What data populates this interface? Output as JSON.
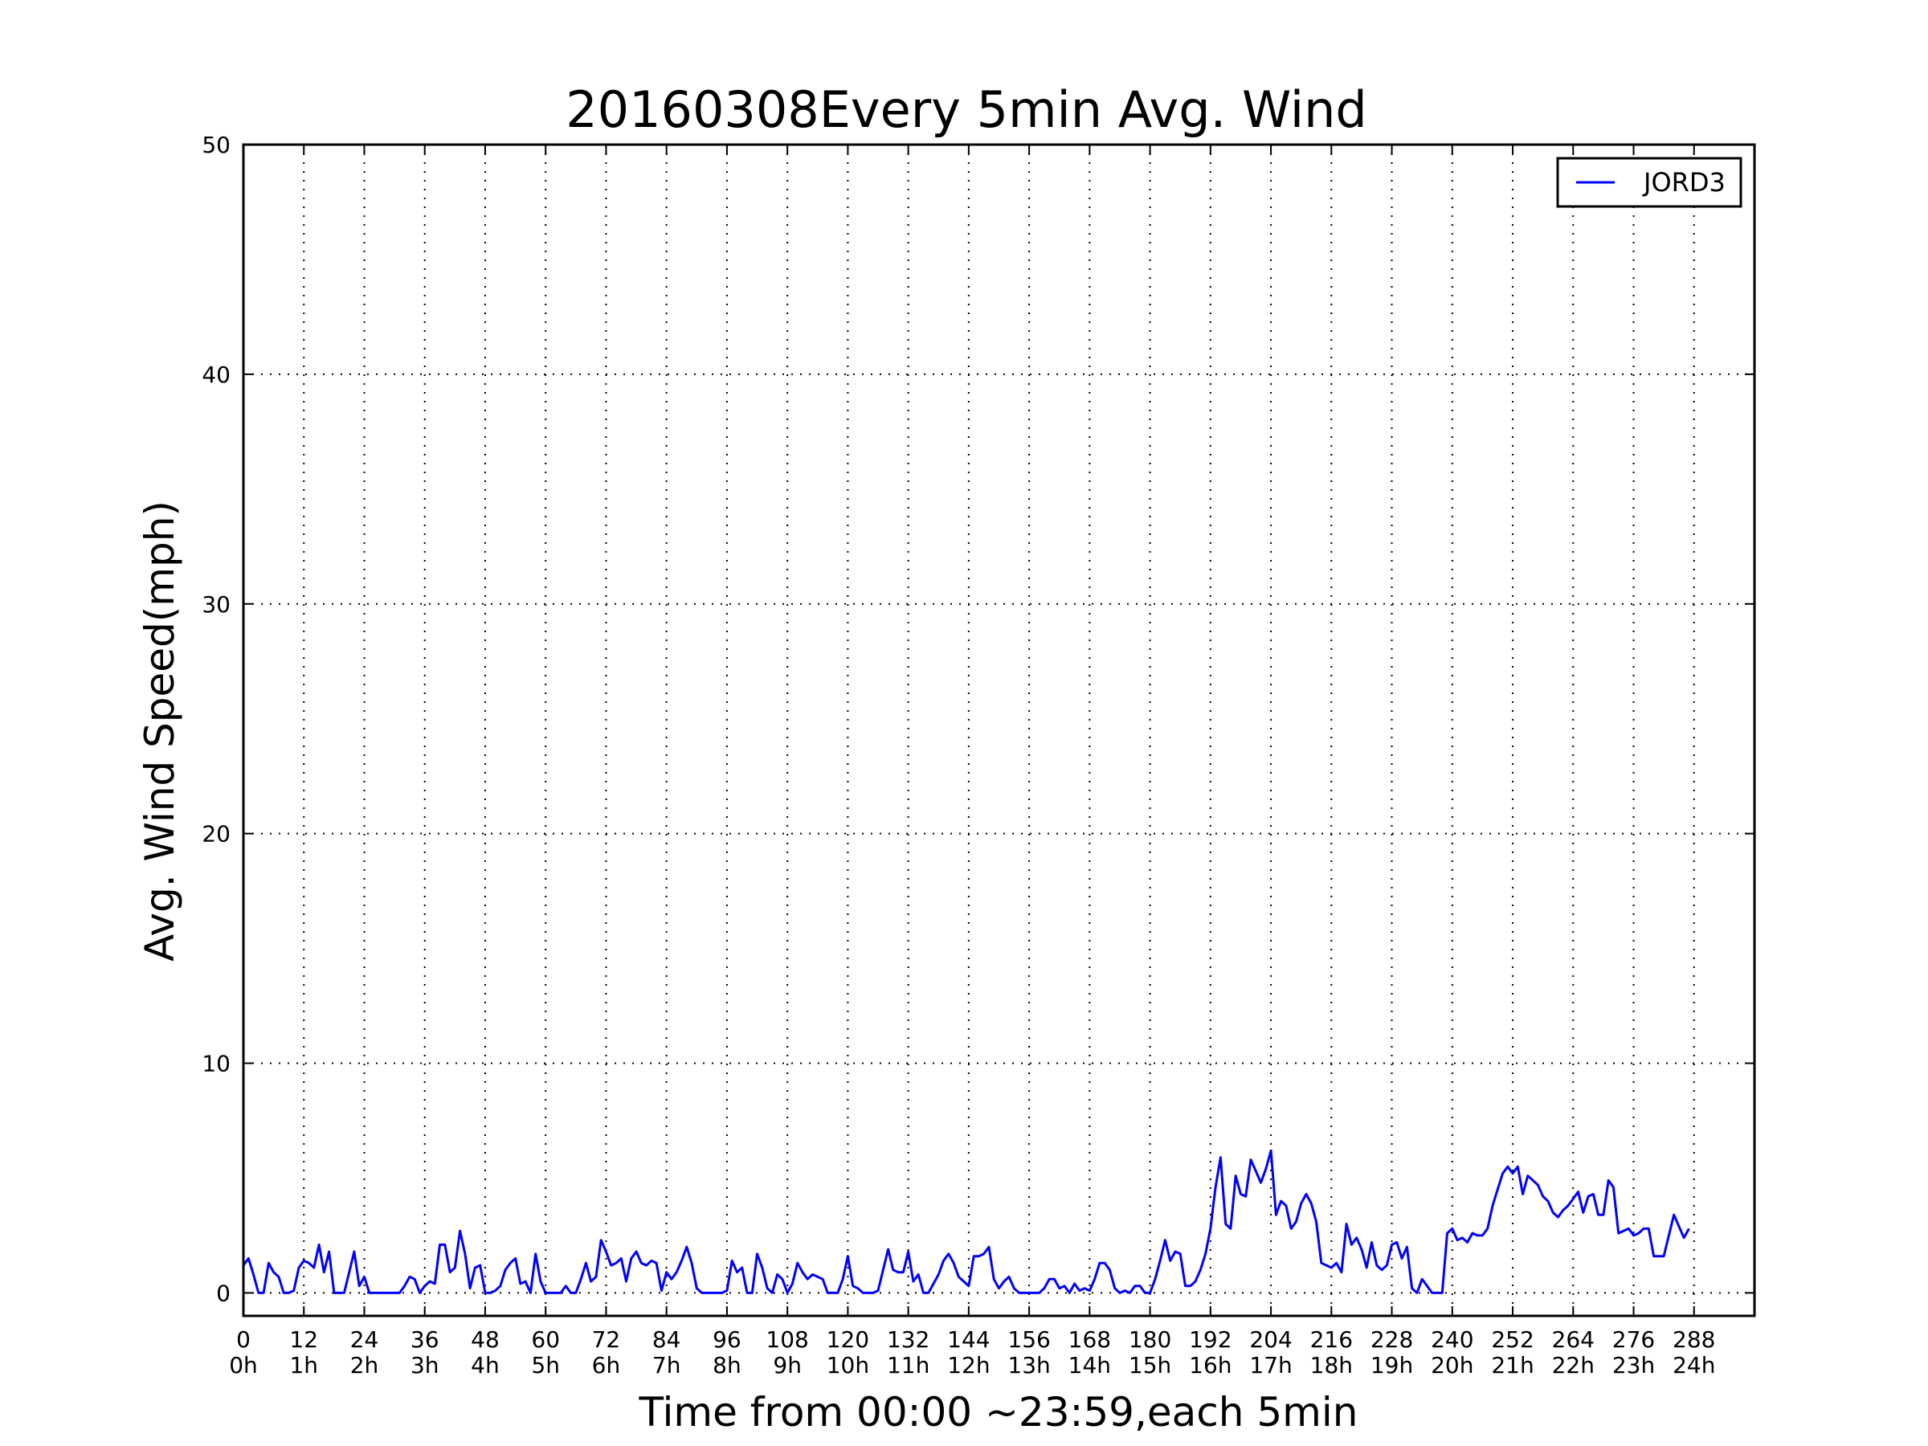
{
  "chart_data": {
    "type": "line",
    "title": "20160308Every 5min Avg. Wind",
    "xlabel": "Time from 00:00 ~23:59,each 5min",
    "ylabel": "Avg. Wind Speed(mph)",
    "xlim": [
      0,
      300
    ],
    "ylim": [
      -1,
      50
    ],
    "x_ticks": [
      {
        "value": 0,
        "label": "0",
        "sublabel": "0h"
      },
      {
        "value": 12,
        "label": "12",
        "sublabel": "1h"
      },
      {
        "value": 24,
        "label": "24",
        "sublabel": "2h"
      },
      {
        "value": 36,
        "label": "36",
        "sublabel": "3h"
      },
      {
        "value": 48,
        "label": "48",
        "sublabel": "4h"
      },
      {
        "value": 60,
        "label": "60",
        "sublabel": "5h"
      },
      {
        "value": 72,
        "label": "72",
        "sublabel": "6h"
      },
      {
        "value": 84,
        "label": "84",
        "sublabel": "7h"
      },
      {
        "value": 96,
        "label": "96",
        "sublabel": "8h"
      },
      {
        "value": 108,
        "label": "108",
        "sublabel": "9h"
      },
      {
        "value": 120,
        "label": "120",
        "sublabel": "10h"
      },
      {
        "value": 132,
        "label": "132",
        "sublabel": "11h"
      },
      {
        "value": 144,
        "label": "144",
        "sublabel": "12h"
      },
      {
        "value": 156,
        "label": "156",
        "sublabel": "13h"
      },
      {
        "value": 168,
        "label": "168",
        "sublabel": "14h"
      },
      {
        "value": 180,
        "label": "180",
        "sublabel": "15h"
      },
      {
        "value": 192,
        "label": "192",
        "sublabel": "16h"
      },
      {
        "value": 204,
        "label": "204",
        "sublabel": "17h"
      },
      {
        "value": 216,
        "label": "216",
        "sublabel": "18h"
      },
      {
        "value": 228,
        "label": "228",
        "sublabel": "19h"
      },
      {
        "value": 240,
        "label": "240",
        "sublabel": "20h"
      },
      {
        "value": 252,
        "label": "252",
        "sublabel": "21h"
      },
      {
        "value": 264,
        "label": "264",
        "sublabel": "22h"
      },
      {
        "value": 276,
        "label": "276",
        "sublabel": "23h"
      },
      {
        "value": 288,
        "label": "288",
        "sublabel": "24h"
      }
    ],
    "y_ticks": [
      {
        "value": 0,
        "label": "0"
      },
      {
        "value": 10,
        "label": "10"
      },
      {
        "value": 20,
        "label": "20"
      },
      {
        "value": 30,
        "label": "30"
      },
      {
        "value": 40,
        "label": "40"
      },
      {
        "value": 50,
        "label": "50"
      }
    ],
    "grid": true,
    "legend_position": "top-right",
    "series": [
      {
        "name": "JORD3",
        "color": "#0000ff",
        "points": [
          [
            0,
            1.2
          ],
          [
            1,
            1.5
          ],
          [
            2,
            0.8
          ],
          [
            3,
            0.0
          ],
          [
            4,
            0.0
          ],
          [
            5,
            1.3
          ],
          [
            6,
            0.9
          ],
          [
            7,
            0.7
          ],
          [
            8,
            0.0
          ],
          [
            9,
            0.0
          ],
          [
            10,
            0.1
          ],
          [
            11,
            1.1
          ],
          [
            12,
            1.4
          ],
          [
            13,
            1.3
          ],
          [
            14,
            1.1
          ],
          [
            15,
            2.1
          ],
          [
            16,
            0.9
          ],
          [
            17,
            1.8
          ],
          [
            18,
            0.0
          ],
          [
            19,
            0.0
          ],
          [
            20,
            0.0
          ],
          [
            21,
            0.9
          ],
          [
            22,
            1.8
          ],
          [
            23,
            0.3
          ],
          [
            24,
            0.7
          ],
          [
            25,
            0.0
          ],
          [
            26,
            0.0
          ],
          [
            27,
            0.0
          ],
          [
            28,
            0.0
          ],
          [
            29,
            0.0
          ],
          [
            30,
            0.0
          ],
          [
            31,
            0.0
          ],
          [
            32,
            0.3
          ],
          [
            33,
            0.7
          ],
          [
            34,
            0.6
          ],
          [
            35,
            0.0
          ],
          [
            36,
            0.3
          ],
          [
            37,
            0.5
          ],
          [
            38,
            0.4
          ],
          [
            39,
            2.1
          ],
          [
            40,
            2.1
          ],
          [
            41,
            0.9
          ],
          [
            42,
            1.1
          ],
          [
            43,
            2.7
          ],
          [
            44,
            1.7
          ],
          [
            45,
            0.2
          ],
          [
            46,
            1.1
          ],
          [
            47,
            1.2
          ],
          [
            48,
            0.0
          ],
          [
            49,
            0.0
          ],
          [
            50,
            0.1
          ],
          [
            51,
            0.3
          ],
          [
            52,
            1.0
          ],
          [
            53,
            1.3
          ],
          [
            54,
            1.5
          ],
          [
            55,
            0.4
          ],
          [
            56,
            0.5
          ],
          [
            57,
            0.0
          ],
          [
            58,
            1.7
          ],
          [
            59,
            0.5
          ],
          [
            60,
            0.0
          ],
          [
            61,
            0.0
          ],
          [
            62,
            0.0
          ],
          [
            63,
            0.0
          ],
          [
            64,
            0.3
          ],
          [
            65,
            0.0
          ],
          [
            66,
            0.0
          ],
          [
            67,
            0.6
          ],
          [
            68,
            1.3
          ],
          [
            69,
            0.5
          ],
          [
            70,
            0.7
          ],
          [
            71,
            2.3
          ],
          [
            72,
            1.8
          ],
          [
            73,
            1.2
          ],
          [
            74,
            1.3
          ],
          [
            75,
            1.5
          ],
          [
            76,
            0.5
          ],
          [
            77,
            1.5
          ],
          [
            78,
            1.8
          ],
          [
            79,
            1.3
          ],
          [
            80,
            1.2
          ],
          [
            81,
            1.4
          ],
          [
            82,
            1.3
          ],
          [
            83,
            0.1
          ],
          [
            84,
            0.9
          ],
          [
            85,
            0.6
          ],
          [
            86,
            0.9
          ],
          [
            87,
            1.4
          ],
          [
            88,
            2.0
          ],
          [
            89,
            1.3
          ],
          [
            90,
            0.2
          ],
          [
            91,
            0.0
          ],
          [
            92,
            0.0
          ],
          [
            93,
            0.0
          ],
          [
            94,
            0.0
          ],
          [
            95,
            0.0
          ],
          [
            96,
            0.1
          ],
          [
            97,
            1.4
          ],
          [
            98,
            0.9
          ],
          [
            99,
            1.1
          ],
          [
            100,
            0.0
          ],
          [
            101,
            0.0
          ],
          [
            102,
            1.7
          ],
          [
            103,
            1.1
          ],
          [
            104,
            0.2
          ],
          [
            105,
            0.0
          ],
          [
            106,
            0.8
          ],
          [
            107,
            0.6
          ],
          [
            108,
            0.0
          ],
          [
            109,
            0.4
          ],
          [
            110,
            1.3
          ],
          [
            111,
            0.9
          ],
          [
            112,
            0.6
          ],
          [
            113,
            0.8
          ],
          [
            114,
            0.7
          ],
          [
            115,
            0.6
          ],
          [
            116,
            0.0
          ],
          [
            117,
            0.0
          ],
          [
            118,
            0.0
          ],
          [
            119,
            0.6
          ],
          [
            120,
            1.6
          ],
          [
            121,
            0.3
          ],
          [
            122,
            0.2
          ],
          [
            123,
            0.0
          ],
          [
            124,
            0.0
          ],
          [
            125,
            0.0
          ],
          [
            126,
            0.1
          ],
          [
            127,
            1.0
          ],
          [
            128,
            1.9
          ],
          [
            129,
            1.0
          ],
          [
            130,
            0.9
          ],
          [
            131,
            0.9
          ],
          [
            132,
            1.8
          ],
          [
            133,
            0.5
          ],
          [
            134,
            0.8
          ],
          [
            135,
            0.0
          ],
          [
            136,
            0.0
          ],
          [
            137,
            0.4
          ],
          [
            138,
            0.8
          ],
          [
            139,
            1.4
          ],
          [
            140,
            1.7
          ],
          [
            141,
            1.3
          ],
          [
            142,
            0.7
          ],
          [
            143,
            0.5
          ],
          [
            144,
            0.3
          ],
          [
            145,
            1.6
          ],
          [
            146,
            1.6
          ],
          [
            147,
            1.7
          ],
          [
            148,
            2.0
          ],
          [
            149,
            0.6
          ],
          [
            150,
            0.2
          ],
          [
            151,
            0.5
          ],
          [
            152,
            0.7
          ],
          [
            153,
            0.2
          ],
          [
            154,
            0.0
          ],
          [
            155,
            0.0
          ],
          [
            156,
            0.0
          ],
          [
            157,
            0.0
          ],
          [
            158,
            0.0
          ],
          [
            159,
            0.2
          ],
          [
            160,
            0.6
          ],
          [
            161,
            0.6
          ],
          [
            162,
            0.2
          ],
          [
            163,
            0.3
          ],
          [
            164,
            0.0
          ],
          [
            165,
            0.4
          ],
          [
            166,
            0.1
          ],
          [
            167,
            0.2
          ],
          [
            168,
            0.1
          ],
          [
            169,
            0.6
          ],
          [
            170,
            1.3
          ],
          [
            171,
            1.3
          ],
          [
            172,
            1.0
          ],
          [
            173,
            0.2
          ],
          [
            174,
            0.0
          ],
          [
            175,
            0.1
          ],
          [
            176,
            0.0
          ],
          [
            177,
            0.3
          ],
          [
            178,
            0.3
          ],
          [
            179,
            0.0
          ],
          [
            180,
            0.0
          ],
          [
            181,
            0.6
          ],
          [
            182,
            1.4
          ],
          [
            183,
            2.3
          ],
          [
            184,
            1.4
          ],
          [
            185,
            1.8
          ],
          [
            186,
            1.7
          ],
          [
            187,
            0.3
          ],
          [
            188,
            0.3
          ],
          [
            189,
            0.5
          ],
          [
            190,
            1.0
          ],
          [
            191,
            1.7
          ],
          [
            192,
            2.8
          ],
          [
            193,
            4.6
          ],
          [
            194,
            5.9
          ],
          [
            195,
            3.0
          ],
          [
            196,
            2.8
          ],
          [
            197,
            5.1
          ],
          [
            198,
            4.3
          ],
          [
            199,
            4.2
          ],
          [
            200,
            5.8
          ],
          [
            201,
            5.3
          ],
          [
            202,
            4.8
          ],
          [
            203,
            5.4
          ],
          [
            204,
            6.2
          ],
          [
            205,
            3.4
          ],
          [
            206,
            4.0
          ],
          [
            207,
            3.8
          ],
          [
            208,
            2.8
          ],
          [
            209,
            3.1
          ],
          [
            210,
            3.9
          ],
          [
            211,
            4.3
          ],
          [
            212,
            3.9
          ],
          [
            213,
            3.1
          ],
          [
            214,
            1.3
          ],
          [
            215,
            1.2
          ],
          [
            216,
            1.1
          ],
          [
            217,
            1.3
          ],
          [
            218,
            0.9
          ],
          [
            219,
            3.0
          ],
          [
            220,
            2.1
          ],
          [
            221,
            2.4
          ],
          [
            222,
            1.9
          ],
          [
            223,
            1.1
          ],
          [
            224,
            2.2
          ],
          [
            225,
            1.2
          ],
          [
            226,
            1.0
          ],
          [
            227,
            1.2
          ],
          [
            228,
            2.1
          ],
          [
            229,
            2.2
          ],
          [
            230,
            1.5
          ],
          [
            231,
            2.0
          ],
          [
            232,
            0.2
          ],
          [
            233,
            0.0
          ],
          [
            234,
            0.6
          ],
          [
            235,
            0.3
          ],
          [
            236,
            0.0
          ],
          [
            237,
            0.0
          ],
          [
            238,
            0.0
          ],
          [
            239,
            2.6
          ],
          [
            240,
            2.8
          ],
          [
            241,
            2.3
          ],
          [
            242,
            2.4
          ],
          [
            243,
            2.2
          ],
          [
            244,
            2.6
          ],
          [
            245,
            2.5
          ],
          [
            246,
            2.5
          ],
          [
            247,
            2.8
          ],
          [
            248,
            3.8
          ],
          [
            249,
            4.5
          ],
          [
            250,
            5.2
          ],
          [
            251,
            5.5
          ],
          [
            252,
            5.2
          ],
          [
            253,
            5.5
          ],
          [
            254,
            4.3
          ],
          [
            255,
            5.1
          ],
          [
            256,
            4.9
          ],
          [
            257,
            4.7
          ],
          [
            258,
            4.2
          ],
          [
            259,
            4.0
          ],
          [
            260,
            3.5
          ],
          [
            261,
            3.3
          ],
          [
            262,
            3.6
          ],
          [
            263,
            3.8
          ],
          [
            264,
            4.1
          ],
          [
            265,
            4.4
          ],
          [
            266,
            3.5
          ],
          [
            267,
            4.2
          ],
          [
            268,
            4.3
          ],
          [
            269,
            3.4
          ],
          [
            270,
            3.4
          ],
          [
            271,
            4.9
          ],
          [
            272,
            4.6
          ],
          [
            273,
            2.6
          ],
          [
            274,
            2.7
          ],
          [
            275,
            2.8
          ],
          [
            276,
            2.5
          ],
          [
            277,
            2.6
          ],
          [
            278,
            2.8
          ],
          [
            279,
            2.8
          ],
          [
            280,
            1.6
          ],
          [
            281,
            1.6
          ],
          [
            282,
            1.6
          ],
          [
            283,
            2.5
          ],
          [
            284,
            3.4
          ],
          [
            285,
            2.9
          ],
          [
            286,
            2.4
          ],
          [
            287,
            2.8
          ]
        ]
      }
    ]
  }
}
